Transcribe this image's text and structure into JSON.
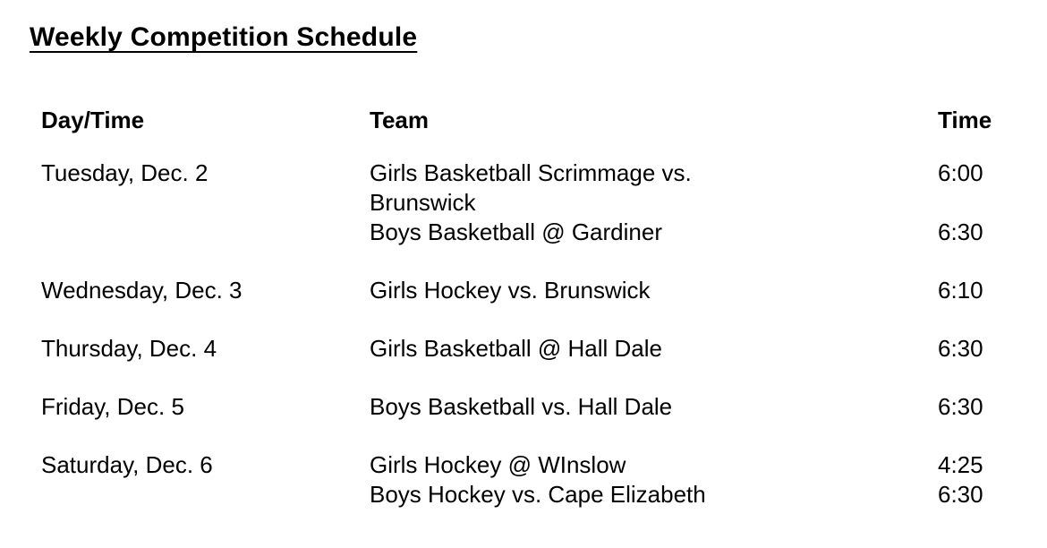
{
  "page": {
    "title": "Weekly Competition Schedule",
    "text_color": "#000000",
    "background_color": "#ffffff"
  },
  "table": {
    "headers": {
      "day": "Day/Time",
      "team": "Team",
      "time": "Time"
    },
    "rows": [
      {
        "day": "Tuesday, Dec. 2",
        "events": [
          {
            "team": "Girls Basketball Scrimmage vs. Brunswick",
            "team_lines": [
              "Girls Basketball Scrimmage vs.",
              "Brunswick"
            ],
            "time": "6:00"
          },
          {
            "team": "Boys Basketball @ Gardiner",
            "team_lines": [
              "Boys Basketball @ Gardiner"
            ],
            "time": "6:30"
          }
        ]
      },
      {
        "day": "Wednesday, Dec. 3",
        "events": [
          {
            "team": "Girls Hockey vs. Brunswick",
            "team_lines": [
              "Girls Hockey vs. Brunswick"
            ],
            "time": "6:10"
          }
        ]
      },
      {
        "day": "Thursday, Dec. 4",
        "events": [
          {
            "team": "Girls Basketball @ Hall Dale",
            "team_lines": [
              "Girls Basketball @ Hall Dale"
            ],
            "time": "6:30"
          }
        ]
      },
      {
        "day": "Friday, Dec. 5",
        "events": [
          {
            "team": "Boys Basketball vs. Hall Dale",
            "team_lines": [
              "Boys Basketball vs. Hall Dale"
            ],
            "time": "6:30"
          }
        ]
      },
      {
        "day": "Saturday, Dec. 6",
        "events": [
          {
            "team": "Girls Hockey @ WInslow",
            "team_lines": [
              "Girls Hockey @ WInslow"
            ],
            "time": "4:25"
          },
          {
            "team": "Boys Hockey vs. Cape Elizabeth",
            "team_lines": [
              "Boys Hockey vs. Cape Elizabeth"
            ],
            "time": "6:30"
          }
        ]
      }
    ]
  }
}
